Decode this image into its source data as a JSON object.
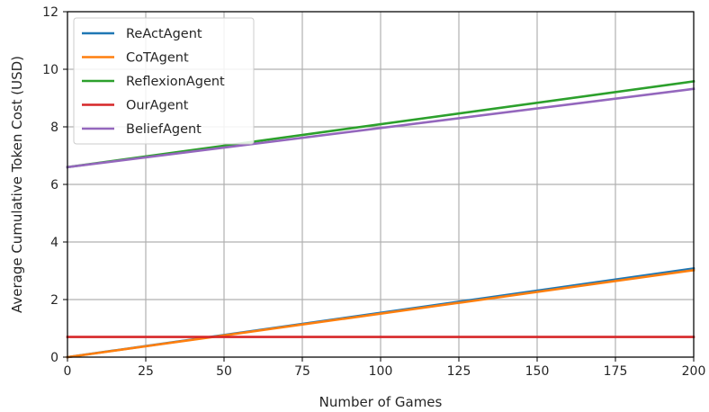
{
  "chart_data": {
    "type": "line",
    "title": "",
    "xlabel": "Number of Games",
    "ylabel": "Average Cumulative Token Cost (USD)",
    "xlim": [
      0,
      200
    ],
    "ylim": [
      0,
      12
    ],
    "xticks": [
      0,
      25,
      50,
      75,
      100,
      125,
      150,
      175,
      200
    ],
    "yticks": [
      0,
      2,
      4,
      6,
      8,
      10,
      12
    ],
    "grid": true,
    "legend_position": "top-left",
    "series": [
      {
        "name": "ReActAgent",
        "color": "#1f77b4",
        "x": [
          0,
          200
        ],
        "y": [
          0.0,
          3.08
        ]
      },
      {
        "name": "CoTAgent",
        "color": "#ff7f0e",
        "x": [
          0,
          200
        ],
        "y": [
          0.0,
          3.02
        ]
      },
      {
        "name": "ReflexionAgent",
        "color": "#2ca02c",
        "x": [
          0,
          200
        ],
        "y": [
          6.6,
          9.58
        ]
      },
      {
        "name": "OurAgent",
        "color": "#d62728",
        "x": [
          0,
          200
        ],
        "y": [
          0.7,
          0.7
        ]
      },
      {
        "name": "BeliefAgent",
        "color": "#9467bd",
        "x": [
          0,
          200
        ],
        "y": [
          6.6,
          9.32
        ]
      }
    ]
  }
}
